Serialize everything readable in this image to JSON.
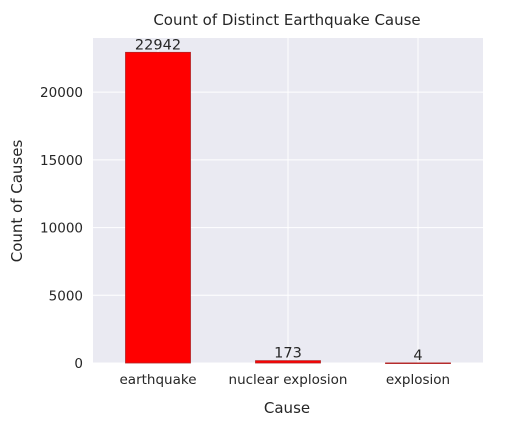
{
  "chart_data": {
    "type": "bar",
    "title": "Count of Distinct Earthquake Cause",
    "xlabel": "Cause",
    "ylabel": "Count of Causes",
    "categories": [
      "earthquake",
      "nuclear explosion",
      "explosion"
    ],
    "values": [
      22942,
      173,
      4
    ],
    "data_labels": [
      "22942",
      "173",
      "4"
    ],
    "ylim": [
      0,
      24000
    ],
    "yticks": [
      0,
      5000,
      10000,
      15000,
      20000
    ],
    "ytick_labels": [
      "0",
      "5000",
      "10000",
      "15000",
      "20000"
    ],
    "grid": true,
    "legend": "none",
    "colors": {
      "bar": "#ff0000",
      "bar_edge": "#b22222",
      "plot_background": "#eaeaf2",
      "grid": "#ffffff",
      "text": "#262626"
    }
  }
}
